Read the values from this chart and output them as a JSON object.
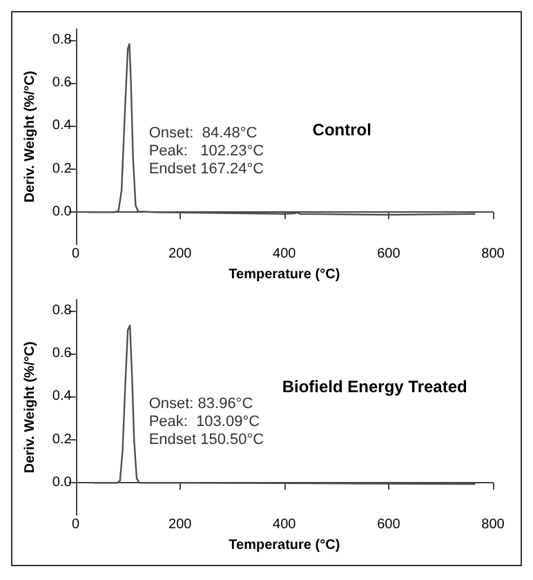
{
  "chart_data": [
    {
      "type": "line",
      "title": "Control",
      "xlabel": "Temperature (°C)",
      "ylabel": "Deriv. Weight (%/°C)",
      "annotations": [
        "Onset:  84.48°C",
        "Peak:   102.23°C",
        "Endset 167.24°C"
      ],
      "xlim": [
        0,
        800
      ],
      "xticks": [
        0,
        200,
        400,
        600,
        800
      ],
      "ylim": [
        -0.15,
        0.85
      ],
      "yticks": [
        {
          "value": 0,
          "label": "0.0"
        },
        0.2,
        0.4,
        0.6,
        0.8
      ],
      "grid": false,
      "marker": "none",
      "line_style": "solid",
      "series": [
        {
          "color": "#505050",
          "x": [
            25,
            50,
            75,
            82,
            88,
            95,
            100,
            103,
            106,
            110,
            115,
            120,
            150,
            200,
            300,
            400,
            420,
            425,
            430,
            500,
            600,
            700,
            765
          ],
          "values": [
            0,
            0,
            0,
            0.005,
            0.1,
            0.5,
            0.76,
            0.78,
            0.6,
            0.25,
            0.03,
            0.003,
            0,
            -0.002,
            -0.005,
            -0.008,
            -0.006,
            -0.002,
            -0.008,
            -0.01,
            -0.012,
            -0.01,
            -0.008
          ]
        }
      ]
    },
    {
      "type": "line",
      "title": "Biofield Energy Treated",
      "xlabel": "Temperature (°C)",
      "ylabel": "Deriv. Weight (%/°C)",
      "annotations": [
        "Onset: 83.96°C",
        "Peak:  103.09°C",
        "Endset 150.50°C"
      ],
      "xlim": [
        0,
        800
      ],
      "xticks": [
        0,
        200,
        400,
        600,
        800
      ],
      "ylim": [
        -0.15,
        0.85
      ],
      "yticks": [
        {
          "value": 0,
          "label": "0.0"
        },
        0.2,
        0.4,
        0.6,
        0.8
      ],
      "grid": false,
      "marker": "none",
      "line_style": "solid",
      "series": [
        {
          "color": "#505050",
          "x": [
            35,
            80,
            85,
            90,
            95,
            100,
            104,
            108,
            112,
            117,
            122,
            200,
            400,
            600,
            765
          ],
          "values": [
            0,
            0,
            0.01,
            0.15,
            0.45,
            0.71,
            0.73,
            0.5,
            0.2,
            0.02,
            0,
            0,
            -0.002,
            -0.004,
            -0.006
          ]
        }
      ]
    }
  ]
}
